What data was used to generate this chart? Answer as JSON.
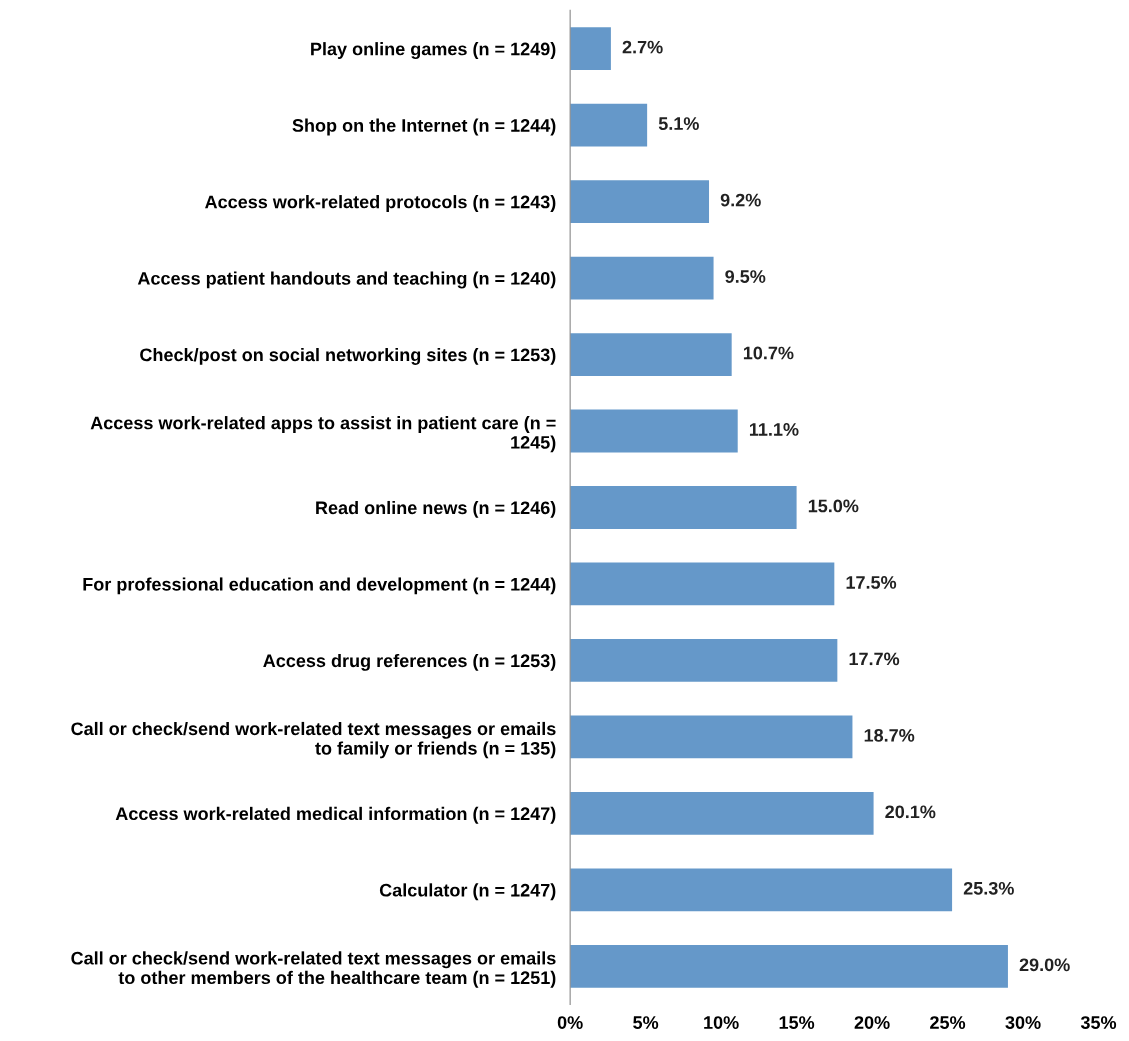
{
  "chart_data": {
    "type": "bar",
    "orientation": "horizontal",
    "categories": [
      "Play online games (n = 1249)",
      "Shop on the Internet (n = 1244)",
      "Access work-related protocols (n = 1243)",
      "Access patient handouts and teaching (n = 1240)",
      "Check/post on social networking sites (n = 1253)",
      "Access work-related apps to assist in patient care (n =\n1245)",
      "Read online news (n = 1246)",
      "For professional education and development (n = 1244)",
      "Access drug references (n = 1253)",
      "Call or check/send work-related text messages or emails\nto family or friends (n = 135)",
      "Access work-related medical information (n = 1247)",
      "Calculator (n = 1247)",
      "Call or check/send work-related text messages or emails\nto other members of the healthcare team (n = 1251)"
    ],
    "values": [
      2.7,
      5.1,
      9.2,
      9.5,
      10.7,
      11.1,
      15.0,
      17.5,
      17.7,
      18.7,
      20.1,
      25.3,
      29.0
    ],
    "value_labels": [
      "2.7%",
      "5.1%",
      "9.2%",
      "9.5%",
      "10.7%",
      "11.1%",
      "15.0%",
      "17.5%",
      "17.7%",
      "18.7%",
      "20.1%",
      "25.3%",
      "29.0%"
    ],
    "color": "#6598c9",
    "xlim": [
      0,
      35
    ],
    "xticks": [
      {
        "value": 0,
        "label": "0%"
      },
      {
        "value": 5,
        "label": "5%"
      },
      {
        "value": 10,
        "label": "10%"
      },
      {
        "value": 15,
        "label": "15%"
      },
      {
        "value": 20,
        "label": "20%"
      },
      {
        "value": 25,
        "label": "25%"
      },
      {
        "value": 30,
        "label": "30%"
      },
      {
        "value": 35,
        "label": "35%"
      }
    ],
    "grid": false,
    "legend": false
  }
}
